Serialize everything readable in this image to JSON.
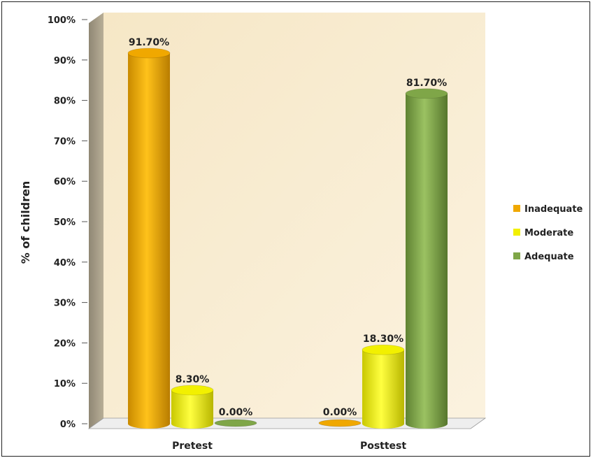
{
  "chart_data": {
    "type": "bar",
    "categories": [
      "Pretest",
      "Posttest"
    ],
    "series": [
      {
        "name": "Inadequate",
        "values": [
          91.7,
          0.0
        ],
        "labels": [
          "91.70%",
          "0.00%"
        ],
        "color": "#f0a800"
      },
      {
        "name": "Moderate",
        "values": [
          8.3,
          18.3
        ],
        "labels": [
          "8.30%",
          "18.30%"
        ],
        "color": "#f2f000"
      },
      {
        "name": "Adequate",
        "values": [
          0.0,
          81.7
        ],
        "labels": [
          "0.00%",
          "81.70%"
        ],
        "color": "#7fa648"
      }
    ],
    "ylabel": "% of children",
    "xlabel": "",
    "ylim": [
      0,
      100
    ],
    "yticks": [
      "0%",
      "10%",
      "20%",
      "30%",
      "40%",
      "50%",
      "60%",
      "70%",
      "80%",
      "90%",
      "100%"
    ],
    "legend_position": "right",
    "style": "3d-cylinder",
    "wall_color": "#f7ecd2"
  }
}
